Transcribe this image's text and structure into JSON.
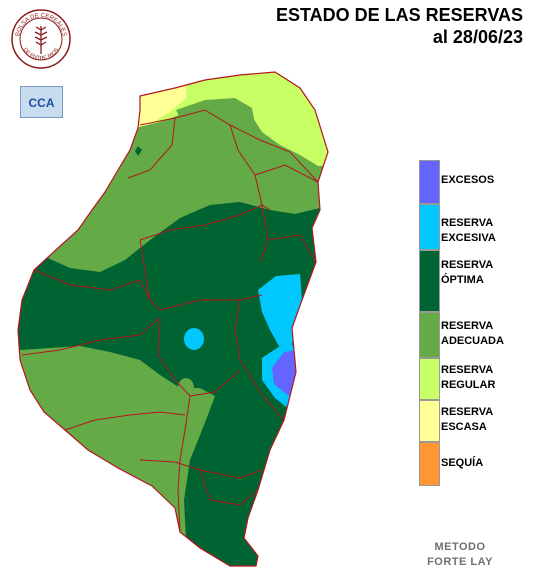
{
  "header": {
    "title_line1": "ESTADO DE LAS RESERVAS",
    "title_line2": "al 28/06/23"
  },
  "logo": {
    "top_text": "BOLSA DE CEREALES",
    "bottom_text": "DE ENTRE RIOS",
    "icon": "wheat-seal-icon"
  },
  "badge": {
    "text": "CCA"
  },
  "legend": {
    "items": [
      {
        "label_line1": "EXCESOS",
        "label_line2": "",
        "color": "#6464ff"
      },
      {
        "label_line1": "RESERVA",
        "label_line2": "EXCESIVA",
        "color": "#00c8ff"
      },
      {
        "label_line1": "RESERVA",
        "label_line2": "ÓPTIMA",
        "color": "#006432"
      },
      {
        "label_line1": "RESERVA",
        "label_line2": "ADECUADA",
        "color": "#64aa46"
      },
      {
        "label_line1": "RESERVA",
        "label_line2": "REGULAR",
        "color": "#c8ff64"
      },
      {
        "label_line1": "RESERVA",
        "label_line2": "ESCASA",
        "color": "#ffff96"
      },
      {
        "label_line1": "SEQUÍA",
        "label_line2": "",
        "color": "#ff9632"
      }
    ]
  },
  "footer": {
    "method_line1": "METODO",
    "method_line2": "FORTE LAY"
  },
  "colors": {
    "border": "#b4161e",
    "excesos": "#6464ff",
    "excesiva": "#00c8ff",
    "optima": "#006432",
    "adecuada": "#64aa46",
    "regular": "#c8ff64",
    "escasa": "#ffff96",
    "sequia": "#ff9632"
  }
}
